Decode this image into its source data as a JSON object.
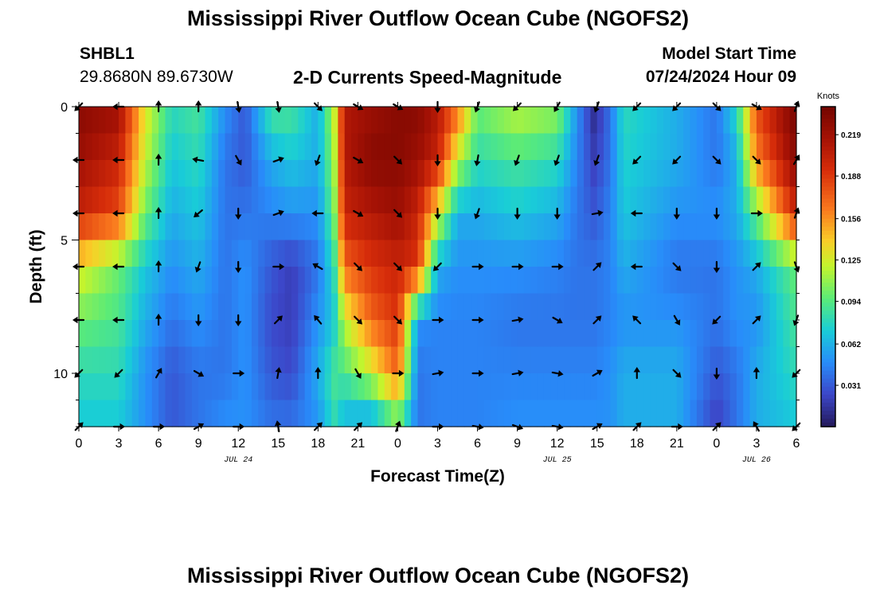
{
  "header": {
    "title": "Mississippi River Outflow Ocean Cube (NGOFS2)",
    "station_id": "SHBL1",
    "coordinates": "29.8680N  89.6730W",
    "subtitle": "2-D Currents Speed-Magnitude",
    "model_start_label": "Model Start Time",
    "model_start_value": "07/24/2024 Hour 09"
  },
  "footer": {
    "title_repeat": "Mississippi River Outflow Ocean Cube (NGOFS2)"
  },
  "chart_data": {
    "type": "heatmap",
    "xlabel": "Forecast Time(Z)",
    "ylabel": "Depth (ft)",
    "x_range_hours": [
      0,
      54
    ],
    "y_range_ft": [
      0,
      12
    ],
    "x_ticks": [
      {
        "h": 0,
        "label": "0"
      },
      {
        "h": 3,
        "label": "3"
      },
      {
        "h": 6,
        "label": "6"
      },
      {
        "h": 9,
        "label": "9"
      },
      {
        "h": 12,
        "label": "12"
      },
      {
        "h": 15,
        "label": "15"
      },
      {
        "h": 18,
        "label": "18"
      },
      {
        "h": 21,
        "label": "21"
      },
      {
        "h": 24,
        "label": "0"
      },
      {
        "h": 27,
        "label": "3"
      },
      {
        "h": 30,
        "label": "6"
      },
      {
        "h": 33,
        "label": "9"
      },
      {
        "h": 36,
        "label": "12"
      },
      {
        "h": 39,
        "label": "15"
      },
      {
        "h": 42,
        "label": "18"
      },
      {
        "h": 45,
        "label": "21"
      },
      {
        "h": 48,
        "label": "0"
      },
      {
        "h": 51,
        "label": "3"
      },
      {
        "h": 54,
        "label": "6"
      }
    ],
    "y_ticks": [
      {
        "ft": 0,
        "label": "0"
      },
      {
        "ft": 5,
        "label": "5"
      },
      {
        "ft": 10,
        "label": "10"
      }
    ],
    "date_labels": [
      {
        "h": 12,
        "label": "JUL 24"
      },
      {
        "h": 36,
        "label": "JUL 25"
      },
      {
        "h": 51,
        "label": "JUL 26"
      }
    ],
    "colorbar": {
      "label": "Knots",
      "min": 0.0,
      "max": 0.24,
      "ticks": [
        0.031,
        0.062,
        0.094,
        0.125,
        0.156,
        0.188,
        0.219
      ]
    },
    "depth_levels_ft": [
      0,
      2,
      4,
      6,
      8,
      10,
      12
    ],
    "speed_profile_keyframes": [
      {
        "h": 0,
        "speeds": [
          0.23,
          0.22,
          0.2,
          0.13,
          0.1,
          0.08,
          0.07
        ]
      },
      {
        "h": 3,
        "speeds": [
          0.22,
          0.2,
          0.18,
          0.1,
          0.09,
          0.08,
          0.07
        ]
      },
      {
        "h": 5,
        "speeds": [
          0.13,
          0.12,
          0.1,
          0.07,
          0.06,
          0.05,
          0.05
        ]
      },
      {
        "h": 7,
        "speeds": [
          0.08,
          0.07,
          0.06,
          0.05,
          0.04,
          0.03,
          0.03
        ]
      },
      {
        "h": 9,
        "speeds": [
          0.09,
          0.08,
          0.07,
          0.06,
          0.05,
          0.04,
          0.04
        ]
      },
      {
        "h": 11,
        "speeds": [
          0.05,
          0.04,
          0.04,
          0.04,
          0.04,
          0.04,
          0.05
        ]
      },
      {
        "h": 12.5,
        "speeds": [
          0.03,
          0.03,
          0.04,
          0.05,
          0.05,
          0.05,
          0.05
        ]
      },
      {
        "h": 14.5,
        "speeds": [
          0.09,
          0.06,
          0.045,
          0.03,
          0.025,
          0.03,
          0.04
        ]
      },
      {
        "h": 16,
        "speeds": [
          0.09,
          0.07,
          0.05,
          0.02,
          0.02,
          0.025,
          0.04
        ]
      },
      {
        "h": 18,
        "speeds": [
          0.06,
          0.06,
          0.05,
          0.04,
          0.05,
          0.06,
          0.05
        ]
      },
      {
        "h": 19.2,
        "speeds": [
          0.12,
          0.11,
          0.1,
          0.08,
          0.07,
          0.09,
          0.08
        ]
      },
      {
        "h": 20,
        "speeds": [
          0.21,
          0.21,
          0.2,
          0.17,
          0.12,
          0.09,
          0.06
        ]
      },
      {
        "h": 22,
        "speeds": [
          0.22,
          0.23,
          0.21,
          0.19,
          0.17,
          0.12,
          0.05
        ]
      },
      {
        "h": 24,
        "speeds": [
          0.23,
          0.23,
          0.22,
          0.2,
          0.19,
          0.17,
          0.09
        ]
      },
      {
        "h": 25.5,
        "speeds": [
          0.23,
          0.22,
          0.2,
          0.19,
          0.05,
          0.04,
          0.04
        ]
      },
      {
        "h": 27,
        "speeds": [
          0.21,
          0.2,
          0.13,
          0.06,
          0.045,
          0.045,
          0.045
        ]
      },
      {
        "h": 28.5,
        "speeds": [
          0.17,
          0.12,
          0.06,
          0.05,
          0.045,
          0.045,
          0.045
        ]
      },
      {
        "h": 30,
        "speeds": [
          0.1,
          0.08,
          0.06,
          0.05,
          0.045,
          0.045,
          0.045
        ]
      },
      {
        "h": 33,
        "speeds": [
          0.12,
          0.09,
          0.07,
          0.05,
          0.04,
          0.045,
          0.05
        ]
      },
      {
        "h": 36,
        "speeds": [
          0.11,
          0.08,
          0.06,
          0.045,
          0.04,
          0.045,
          0.05
        ]
      },
      {
        "h": 37.5,
        "speeds": [
          0.05,
          0.045,
          0.04,
          0.04,
          0.04,
          0.045,
          0.05
        ]
      },
      {
        "h": 38.8,
        "speeds": [
          0.01,
          0.02,
          0.03,
          0.04,
          0.04,
          0.045,
          0.05
        ]
      },
      {
        "h": 40,
        "speeds": [
          0.04,
          0.04,
          0.045,
          0.045,
          0.045,
          0.05,
          0.05
        ]
      },
      {
        "h": 41,
        "speeds": [
          0.08,
          0.075,
          0.07,
          0.06,
          0.05,
          0.06,
          0.06
        ]
      },
      {
        "h": 45,
        "speeds": [
          0.06,
          0.06,
          0.05,
          0.04,
          0.05,
          0.06,
          0.06
        ]
      },
      {
        "h": 48,
        "speeds": [
          0.04,
          0.04,
          0.05,
          0.04,
          0.04,
          0.03,
          0.02
        ]
      },
      {
        "h": 49.5,
        "speeds": [
          0.08,
          0.06,
          0.06,
          0.05,
          0.05,
          0.04,
          0.04
        ]
      },
      {
        "h": 51,
        "speeds": [
          0.18,
          0.16,
          0.1,
          0.06,
          0.05,
          0.06,
          0.06
        ]
      },
      {
        "h": 54,
        "speeds": [
          0.24,
          0.23,
          0.2,
          0.1,
          0.09,
          0.08,
          0.07
        ]
      }
    ],
    "vector_time_hours": [
      0,
      3,
      6,
      9,
      12,
      15,
      18,
      21,
      24,
      27,
      30,
      33,
      36,
      39,
      42,
      45,
      48,
      51,
      54
    ],
    "vector_depths_ft": [
      0,
      2,
      4,
      6,
      8,
      10,
      12
    ],
    "vector_direction_keyframes": [
      {
        "h": 0,
        "dirs": [
          225,
          270,
          270,
          270,
          270,
          225,
          45
        ]
      },
      {
        "h": 3,
        "dirs": [
          270,
          270,
          270,
          270,
          270,
          225,
          90
        ]
      },
      {
        "h": 6,
        "dirs": [
          0,
          0,
          0,
          0,
          0,
          30,
          90
        ]
      },
      {
        "h": 9,
        "dirs": [
          0,
          280,
          230,
          200,
          180,
          120,
          60
        ]
      },
      {
        "h": 12,
        "dirs": [
          170,
          150,
          180,
          180,
          180,
          90,
          90
        ]
      },
      {
        "h": 15,
        "dirs": [
          170,
          70,
          70,
          90,
          45,
          10,
          350
        ]
      },
      {
        "h": 18,
        "dirs": [
          135,
          200,
          270,
          300,
          320,
          0,
          45
        ]
      },
      {
        "h": 21,
        "dirs": [
          120,
          120,
          120,
          135,
          135,
          150,
          45
        ]
      },
      {
        "h": 24,
        "dirs": [
          120,
          135,
          135,
          135,
          135,
          90,
          20
        ]
      },
      {
        "h": 27,
        "dirs": [
          180,
          180,
          180,
          225,
          90,
          80,
          90
        ]
      },
      {
        "h": 30,
        "dirs": [
          200,
          190,
          200,
          90,
          90,
          90,
          100
        ]
      },
      {
        "h": 33,
        "dirs": [
          225,
          200,
          180,
          90,
          80,
          80,
          110
        ]
      },
      {
        "h": 36,
        "dirs": [
          210,
          200,
          180,
          90,
          120,
          100,
          100
        ]
      },
      {
        "h": 39,
        "dirs": [
          200,
          200,
          80,
          45,
          45,
          60,
          60
        ]
      },
      {
        "h": 42,
        "dirs": [
          225,
          225,
          270,
          270,
          315,
          0,
          45
        ]
      },
      {
        "h": 45,
        "dirs": [
          225,
          225,
          180,
          135,
          150,
          135,
          90
        ]
      },
      {
        "h": 48,
        "dirs": [
          135,
          135,
          180,
          180,
          225,
          180,
          45
        ]
      },
      {
        "h": 51,
        "dirs": [
          120,
          135,
          90,
          45,
          45,
          0,
          330
        ]
      },
      {
        "h": 54,
        "dirs": [
          20,
          30,
          20,
          160,
          200,
          225,
          225
        ]
      }
    ]
  }
}
